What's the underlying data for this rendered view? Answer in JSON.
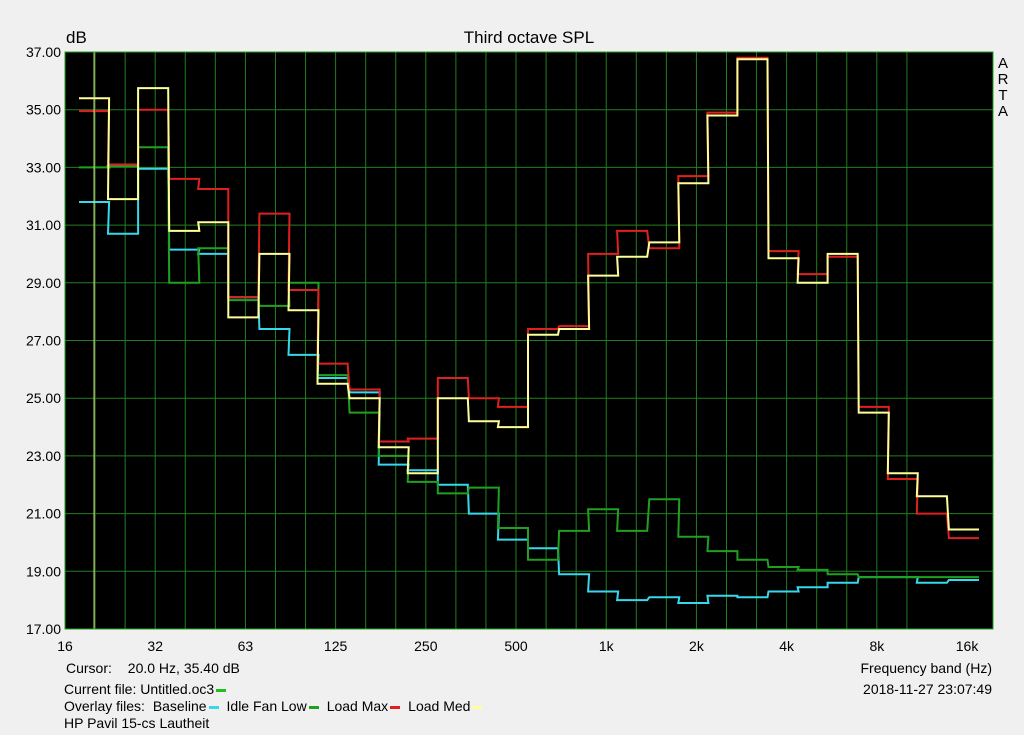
{
  "chart_data": {
    "type": "line",
    "title": "Third octave SPL",
    "ylabel": "dB",
    "xlabel": "Frequency band (Hz)",
    "ylim": [
      17,
      37
    ],
    "yticks": [
      "17.00",
      "19.00",
      "21.00",
      "23.00",
      "25.00",
      "27.00",
      "29.00",
      "31.00",
      "33.00",
      "35.00",
      "37.00"
    ],
    "xticks": [
      "16",
      "32",
      "63",
      "125",
      "250",
      "500",
      "1k",
      "2k",
      "4k",
      "8k",
      "16k"
    ],
    "x_bands_hz": [
      20,
      25,
      31.5,
      40,
      50,
      63,
      80,
      100,
      125,
      160,
      200,
      250,
      315,
      400,
      500,
      630,
      800,
      1000,
      1250,
      1600,
      2000,
      2500,
      3150,
      4000,
      5000,
      6300,
      8000,
      10000,
      12500,
      16000
    ],
    "grid": true,
    "side_label": "ARTA",
    "series": [
      {
        "name": "Baseline",
        "color": "#36d8ec",
        "values": [
          31.8,
          30.7,
          32.95,
          30.15,
          30.0,
          28.5,
          27.4,
          26.5,
          25.7,
          25.2,
          22.7,
          22.5,
          22.0,
          21.0,
          20.1,
          19.8,
          18.9,
          18.3,
          18.0,
          18.1,
          17.9,
          18.15,
          18.1,
          18.3,
          18.45,
          18.6,
          18.8,
          18.8,
          18.6,
          18.7
        ]
      },
      {
        "name": "Idle Fan Low",
        "color": "#20a020",
        "values": [
          33.0,
          33.05,
          33.7,
          29.0,
          30.2,
          28.4,
          28.2,
          29.0,
          25.8,
          24.5,
          23.0,
          22.1,
          21.7,
          21.9,
          20.5,
          19.4,
          20.4,
          21.15,
          20.4,
          21.5,
          20.2,
          19.7,
          19.4,
          19.15,
          19.05,
          18.9,
          18.8,
          18.8,
          18.8,
          18.8
        ]
      },
      {
        "name": "Load Max",
        "color": "#e02020",
        "values": [
          34.95,
          33.1,
          35.0,
          32.6,
          32.25,
          28.5,
          31.4,
          28.75,
          26.2,
          25.3,
          23.5,
          23.6,
          25.7,
          25.0,
          24.7,
          27.4,
          27.5,
          30.0,
          30.8,
          30.2,
          32.7,
          34.9,
          36.8,
          30.1,
          29.3,
          29.9,
          24.7,
          22.2,
          21.0,
          20.15
        ]
      },
      {
        "name": "Load Med",
        "color": "#ffff99",
        "values": [
          35.4,
          31.9,
          35.75,
          30.8,
          31.1,
          27.8,
          30.0,
          28.05,
          25.5,
          25.0,
          23.3,
          22.4,
          25.0,
          24.2,
          24.0,
          27.2,
          27.4,
          29.25,
          29.9,
          30.4,
          32.45,
          34.8,
          36.75,
          29.85,
          29.0,
          30.0,
          24.5,
          22.4,
          21.6,
          20.45
        ]
      }
    ]
  },
  "cursor": {
    "label": "Cursor:",
    "value": "20.0 Hz, 35.40 dB",
    "hz": 20.0
  },
  "current_file": {
    "label": "Current file: Untitled.oc3",
    "color": "#20c020"
  },
  "overlay": {
    "label": "Overlay files:",
    "items": [
      {
        "name": "Baseline",
        "color": "#36d8ec"
      },
      {
        "name": "Idle Fan Low",
        "color": "#20a020"
      },
      {
        "name": "Load Max",
        "color": "#e02020"
      },
      {
        "name": "Load Med",
        "color": "#ffff99"
      }
    ]
  },
  "note": "HP Pavil 15-cs Lautheit",
  "datetime": "2018-11-27  23:07:49",
  "colors": {
    "plot_bg": "#000000",
    "grid": "#208020",
    "frame": "#20a020",
    "page_bg": "#f0f0f0"
  }
}
